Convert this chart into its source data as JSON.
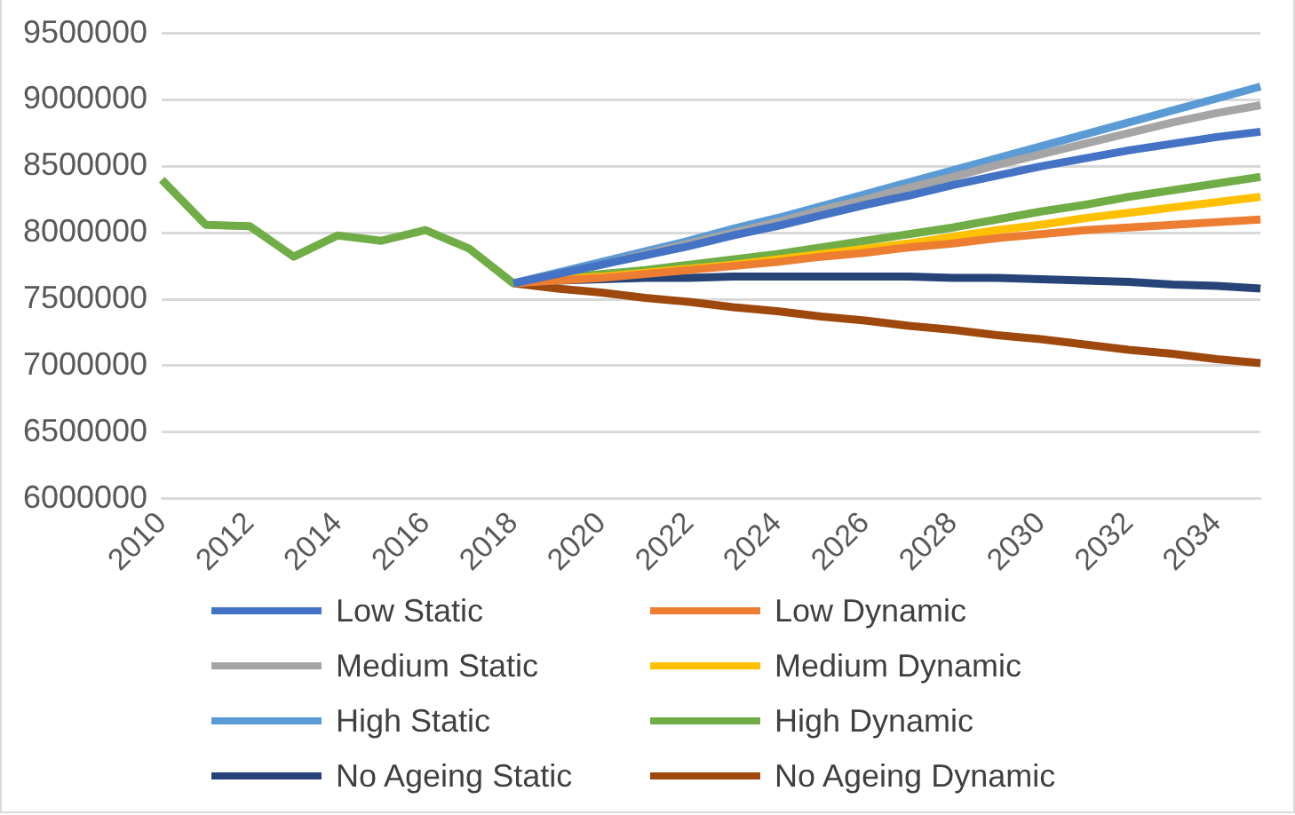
{
  "chart_data": {
    "type": "line",
    "categories": [
      "2010",
      null,
      "2012",
      null,
      "2014",
      null,
      "2016",
      null,
      "2018",
      null,
      "2020",
      null,
      "2022",
      null,
      "2024",
      null,
      "2026",
      null,
      "2028",
      null,
      "2030",
      null,
      "2032",
      null,
      "2034",
      null
    ],
    "series": [
      {
        "name": "Low Static",
        "color": "#4472c4",
        "values": [
          null,
          null,
          null,
          null,
          null,
          null,
          null,
          null,
          7620000,
          7690000,
          7760000,
          7830000,
          7900000,
          7980000,
          8050000,
          8130000,
          8210000,
          8280000,
          8360000,
          8430000,
          8500000,
          8560000,
          8620000,
          8670000,
          8720000,
          8760000
        ]
      },
      {
        "name": "Low Dynamic",
        "color": "#ed7d31",
        "values": [
          null,
          null,
          null,
          null,
          null,
          null,
          null,
          null,
          7620000,
          7640000,
          7660000,
          7690000,
          7720000,
          7750000,
          7780000,
          7820000,
          7850000,
          7890000,
          7920000,
          7960000,
          7990000,
          8020000,
          8040000,
          8060000,
          8080000,
          8100000
        ]
      },
      {
        "name": "Medium Static",
        "color": "#a5a5a5",
        "values": [
          null,
          null,
          null,
          null,
          null,
          null,
          null,
          null,
          7620000,
          7690000,
          7760000,
          7840000,
          7920000,
          8000000,
          8080000,
          8170000,
          8250000,
          8340000,
          8420000,
          8510000,
          8590000,
          8670000,
          8750000,
          8830000,
          8900000,
          8960000
        ]
      },
      {
        "name": "Medium Dynamic",
        "color": "#ffc000",
        "values": [
          null,
          null,
          null,
          null,
          null,
          null,
          null,
          null,
          7620000,
          7650000,
          7670000,
          7700000,
          7730000,
          7760000,
          7800000,
          7840000,
          7880000,
          7920000,
          7970000,
          8020000,
          8060000,
          8110000,
          8150000,
          8190000,
          8230000,
          8270000
        ]
      },
      {
        "name": "High Static",
        "color": "#5b9bd5",
        "values": [
          null,
          null,
          null,
          null,
          null,
          null,
          null,
          null,
          7620000,
          7700000,
          7780000,
          7860000,
          7940000,
          8030000,
          8110000,
          8200000,
          8290000,
          8380000,
          8470000,
          8560000,
          8650000,
          8740000,
          8830000,
          8920000,
          9010000,
          9100000
        ]
      },
      {
        "name": "High Dynamic",
        "color": "#70ad47",
        "values": [
          8400000,
          8060000,
          8050000,
          7820000,
          7980000,
          7940000,
          8020000,
          7880000,
          7620000,
          7660000,
          7690000,
          7720000,
          7760000,
          7800000,
          7840000,
          7890000,
          7940000,
          7990000,
          8040000,
          8100000,
          8160000,
          8210000,
          8270000,
          8320000,
          8370000,
          8420000
        ]
      },
      {
        "name": "No Ageing Static",
        "color": "#264478",
        "values": [
          null,
          null,
          null,
          null,
          null,
          null,
          null,
          null,
          7620000,
          7640000,
          7650000,
          7660000,
          7660000,
          7670000,
          7670000,
          7670000,
          7670000,
          7670000,
          7660000,
          7660000,
          7650000,
          7640000,
          7630000,
          7610000,
          7600000,
          7580000
        ]
      },
      {
        "name": "No Ageing Dynamic",
        "color": "#9e480e",
        "values": [
          null,
          null,
          null,
          null,
          null,
          null,
          null,
          null,
          7620000,
          7580000,
          7550000,
          7510000,
          7480000,
          7440000,
          7410000,
          7370000,
          7340000,
          7300000,
          7270000,
          7230000,
          7200000,
          7160000,
          7120000,
          7090000,
          7050000,
          7020000
        ]
      }
    ],
    "ylim": [
      6000000,
      9500000
    ],
    "yticks": [
      6000000,
      6500000,
      7000000,
      7500000,
      8000000,
      8500000,
      9000000,
      9500000
    ],
    "grid": "y",
    "legend": "bottom",
    "marker": "none",
    "line_style": "solid"
  }
}
